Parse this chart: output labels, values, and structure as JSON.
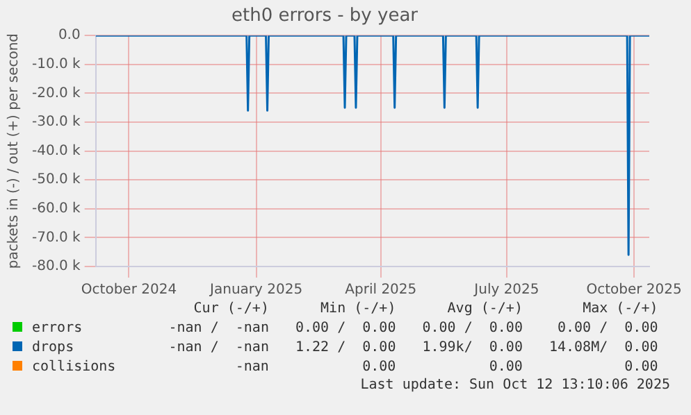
{
  "chart_data": {
    "type": "line",
    "title": "eth0 errors - by year",
    "ylabel": "packets in (-) / out (+) per second",
    "xlim": [
      "2024-09-07",
      "2025-10-12"
    ],
    "ylim": [
      -80000,
      0
    ],
    "xticks": [
      {
        "value": "2024-10-01",
        "label": "October 2024"
      },
      {
        "value": "2025-01-01",
        "label": "January 2025"
      },
      {
        "value": "2025-04-01",
        "label": "April 2025"
      },
      {
        "value": "2025-07-01",
        "label": "July 2025"
      },
      {
        "value": "2025-10-01",
        "label": "October 2025"
      }
    ],
    "yticks": [
      {
        "value": 0,
        "label": "0.0"
      },
      {
        "value": -10000,
        "label": "-10.0 k"
      },
      {
        "value": -20000,
        "label": "-20.0 k"
      },
      {
        "value": -30000,
        "label": "-30.0 k"
      },
      {
        "value": -40000,
        "label": "-40.0 k"
      },
      {
        "value": -50000,
        "label": "-50.0 k"
      },
      {
        "value": -60000,
        "label": "-60.0 k"
      },
      {
        "value": -70000,
        "label": "-70.0 k"
      },
      {
        "value": -80000,
        "label": "-80.0 k"
      }
    ],
    "grid": true,
    "legend": "bottom",
    "marker": "none",
    "series": [
      {
        "name": "errors",
        "color": "#00cc00"
      },
      {
        "name": "drops",
        "color": "#0066b3",
        "x": [
          "2024-09-07",
          "2024-12-25",
          "2024-12-26",
          "2024-12-27",
          "2025-01-08",
          "2025-01-09",
          "2025-01-10",
          "2025-03-05",
          "2025-03-06",
          "2025-03-07",
          "2025-03-13",
          "2025-03-14",
          "2025-03-15",
          "2025-04-10",
          "2025-04-11",
          "2025-04-12",
          "2025-05-16",
          "2025-05-17",
          "2025-05-18",
          "2025-06-09",
          "2025-06-10",
          "2025-06-11",
          "2025-09-26",
          "2025-09-27",
          "2025-09-28",
          "2025-10-12"
        ],
        "values": [
          0,
          0,
          -26000,
          0,
          0,
          -26000,
          0,
          0,
          -25000,
          0,
          0,
          -25000,
          0,
          0,
          -25000,
          0,
          0,
          -25000,
          0,
          0,
          -25000,
          0,
          0,
          -76000,
          0,
          0
        ]
      },
      {
        "name": "collisions",
        "color": "#ff8000"
      }
    ],
    "annotations": [
      "Cur (-/+)",
      "Min (-/+)",
      "Avg (-/+)",
      "Max (-/+)",
      "-nan /  -nan",
      "0.00 /  0.00",
      "0.00 /  0.00",
      "0.00 /  0.00",
      "-nan /  -nan",
      "1.22 /  0.00",
      "1.99k/  0.00",
      "14.08M/  0.00",
      "-nan",
      "0.00",
      "0.00",
      "0.00",
      "Last update: Sun Oct 12 13:10:06 2025"
    ]
  }
}
